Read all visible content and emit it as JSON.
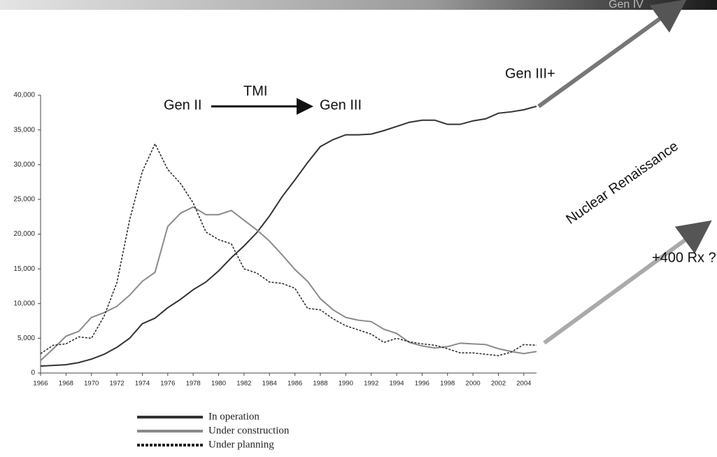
{
  "chart_data": {
    "type": "line",
    "annotations": [
      "Gen II",
      "TMI",
      "Gen III",
      "Gen III+",
      "Gen IV",
      "Nuclear Renaissance",
      "+400 Rx ?"
    ],
    "x": [
      1966,
      1967,
      1968,
      1969,
      1970,
      1971,
      1972,
      1973,
      1974,
      1975,
      1976,
      1977,
      1978,
      1979,
      1980,
      1981,
      1982,
      1983,
      1984,
      1985,
      1986,
      1987,
      1988,
      1989,
      1990,
      1991,
      1992,
      1993,
      1994,
      1995,
      1996,
      1997,
      1998,
      1999,
      2000,
      2001,
      2002,
      2003,
      2004,
      2005
    ],
    "xlim": [
      1966,
      2005
    ],
    "xticks": [
      1966,
      1968,
      1970,
      1972,
      1974,
      1976,
      1978,
      1980,
      1982,
      1984,
      1986,
      1988,
      1990,
      1992,
      1994,
      1996,
      1998,
      2000,
      2002,
      2004
    ],
    "ylim": [
      0,
      40000
    ],
    "yticks": [
      0,
      {
        "value": 5000,
        "label": "5,000"
      },
      {
        "value": 10000,
        "label": "10,000"
      },
      {
        "value": 15000,
        "label": "15,000"
      },
      {
        "value": 20000,
        "label": "20,000"
      },
      {
        "value": 25000,
        "label": "25,000"
      },
      {
        "value": 30000,
        "label": "30,000"
      },
      {
        "value": 35000,
        "label": "35,000"
      },
      {
        "value": 40000,
        "label": "40,000"
      }
    ],
    "series": [
      {
        "name": "In operation",
        "color": "#333333",
        "style": "solid",
        "values": [
          1000,
          1100,
          1200,
          1500,
          2000,
          2700,
          3700,
          5000,
          7100,
          7900,
          9400,
          10600,
          12000,
          13100,
          14700,
          16600,
          18300,
          20200,
          22600,
          25400,
          27800,
          30300,
          32600,
          33600,
          34300,
          34300,
          34400,
          34900,
          35500,
          36100,
          36400,
          36400,
          35800,
          35800,
          36300,
          36600,
          37400,
          37600,
          37900,
          38400
        ]
      },
      {
        "name": "Under construction",
        "color": "#8a8a8a",
        "style": "solid",
        "values": [
          1800,
          3500,
          5300,
          6000,
          8000,
          8700,
          9600,
          11200,
          13200,
          14500,
          21100,
          23000,
          23900,
          22800,
          22800,
          23400,
          22000,
          20600,
          19000,
          17000,
          14900,
          13200,
          10700,
          9100,
          8000,
          7600,
          7400,
          6300,
          5700,
          4400,
          3900,
          3600,
          3800,
          4300,
          4200,
          4100,
          3500,
          3100,
          2800,
          3100
        ]
      },
      {
        "name": "Under planning",
        "color": "#222222",
        "style": "dotted",
        "values": [
          2800,
          4000,
          4200,
          5200,
          5000,
          8200,
          13000,
          22000,
          29000,
          33000,
          29300,
          27300,
          24500,
          20300,
          19200,
          18600,
          15000,
          14400,
          13100,
          12900,
          12200,
          9300,
          9100,
          7800,
          6800,
          6200,
          5600,
          4400,
          5000,
          4500,
          4200,
          4000,
          3500,
          2900,
          2900,
          2700,
          2500,
          3000,
          4100,
          4000
        ]
      }
    ]
  }
}
